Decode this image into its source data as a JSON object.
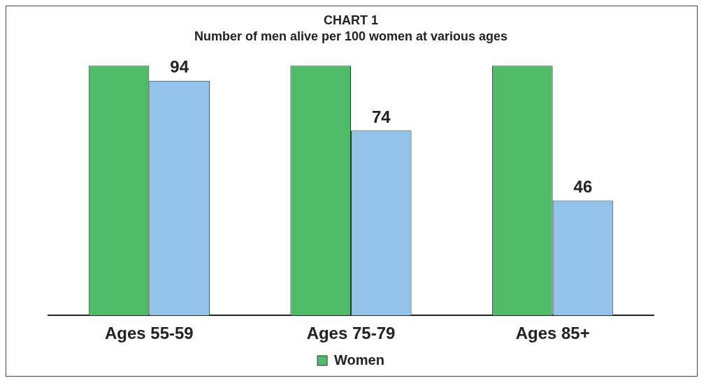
{
  "chart_data": {
    "type": "bar",
    "title": "CHART 1",
    "subtitle": "Number of men alive per 100 women at various ages",
    "categories": [
      "Ages 55-59",
      "Ages 75-79",
      "Ages 85+"
    ],
    "series": [
      {
        "name": "Women",
        "color": "#4fbb69",
        "values": [
          100,
          100,
          100
        ]
      },
      {
        "color": "#93c3e8",
        "values": [
          94,
          74,
          46
        ],
        "value_labels": [
          "94",
          "74",
          "46"
        ]
      }
    ],
    "legend": "bottom",
    "grid": false
  }
}
